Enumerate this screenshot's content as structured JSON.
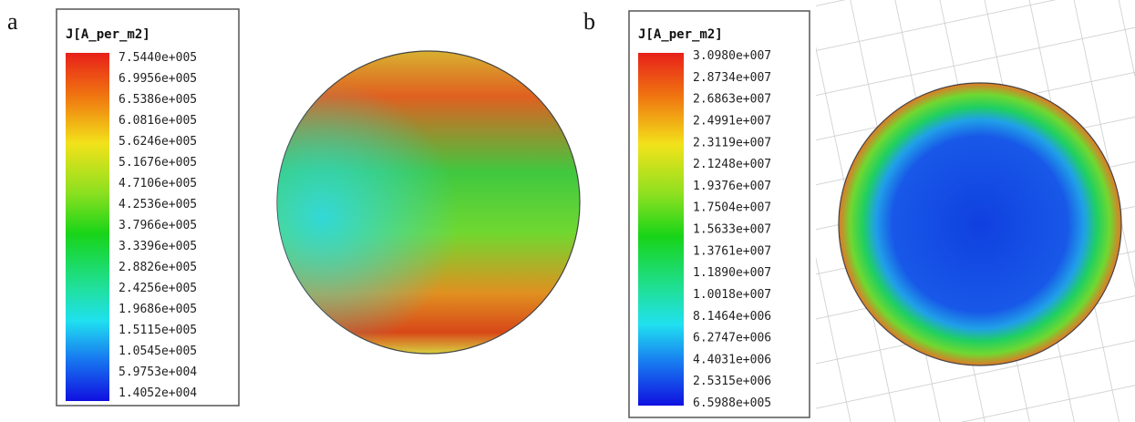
{
  "panels": [
    {
      "label": "a",
      "legend_title": "J[A_per_m2]",
      "scale_labels": [
        "7.5440e+005",
        "6.9956e+005",
        "6.5386e+005",
        "6.0816e+005",
        "5.6246e+005",
        "5.1676e+005",
        "4.7106e+005",
        "4.2536e+005",
        "3.7966e+005",
        "3.3396e+005",
        "2.8826e+005",
        "2.4256e+005",
        "1.9686e+005",
        "1.5115e+005",
        "1.0545e+005",
        "5.9753e+004",
        "1.4052e+004"
      ]
    },
    {
      "label": "b",
      "legend_title": "J[A_per_m2]",
      "scale_labels": [
        "3.0980e+007",
        "2.8734e+007",
        "2.6863e+007",
        "2.4991e+007",
        "2.3119e+007",
        "2.1248e+007",
        "1.9376e+007",
        "1.7504e+007",
        "1.5633e+007",
        "1.3761e+007",
        "1.1890e+007",
        "1.0018e+007",
        "8.1464e+006",
        "6.2747e+006",
        "4.4031e+006",
        "2.5315e+006",
        "6.5988e+005"
      ]
    }
  ]
}
